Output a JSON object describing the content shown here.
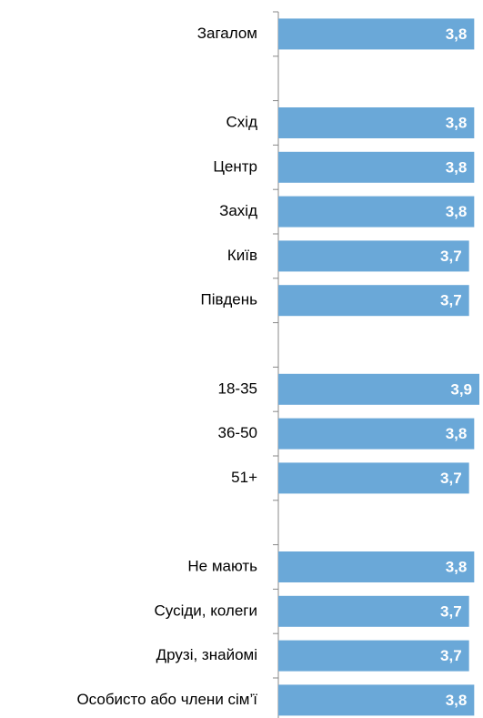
{
  "chart_data": {
    "type": "bar",
    "orientation": "horizontal",
    "categories": [
      "Загалом",
      null,
      "Схід",
      "Центр",
      "Захід",
      "Київ",
      "Південь",
      null,
      "18-35",
      "36-50",
      "51+",
      null,
      "Не мають",
      "Сусіди, колеги",
      "Друзі, знайомі",
      "Особисто або члени сім’ї"
    ],
    "values": [
      3.8,
      null,
      3.8,
      3.8,
      3.8,
      3.7,
      3.7,
      null,
      3.9,
      3.8,
      3.7,
      null,
      3.8,
      3.7,
      3.7,
      3.8
    ],
    "value_labels": [
      "3,8",
      null,
      "3,8",
      "3,8",
      "3,8",
      "3,7",
      "3,7",
      null,
      "3,9",
      "3,8",
      "3,7",
      null,
      "3,8",
      "3,7",
      "3,7",
      "3,8"
    ],
    "color": "#6aa8d8"
  }
}
